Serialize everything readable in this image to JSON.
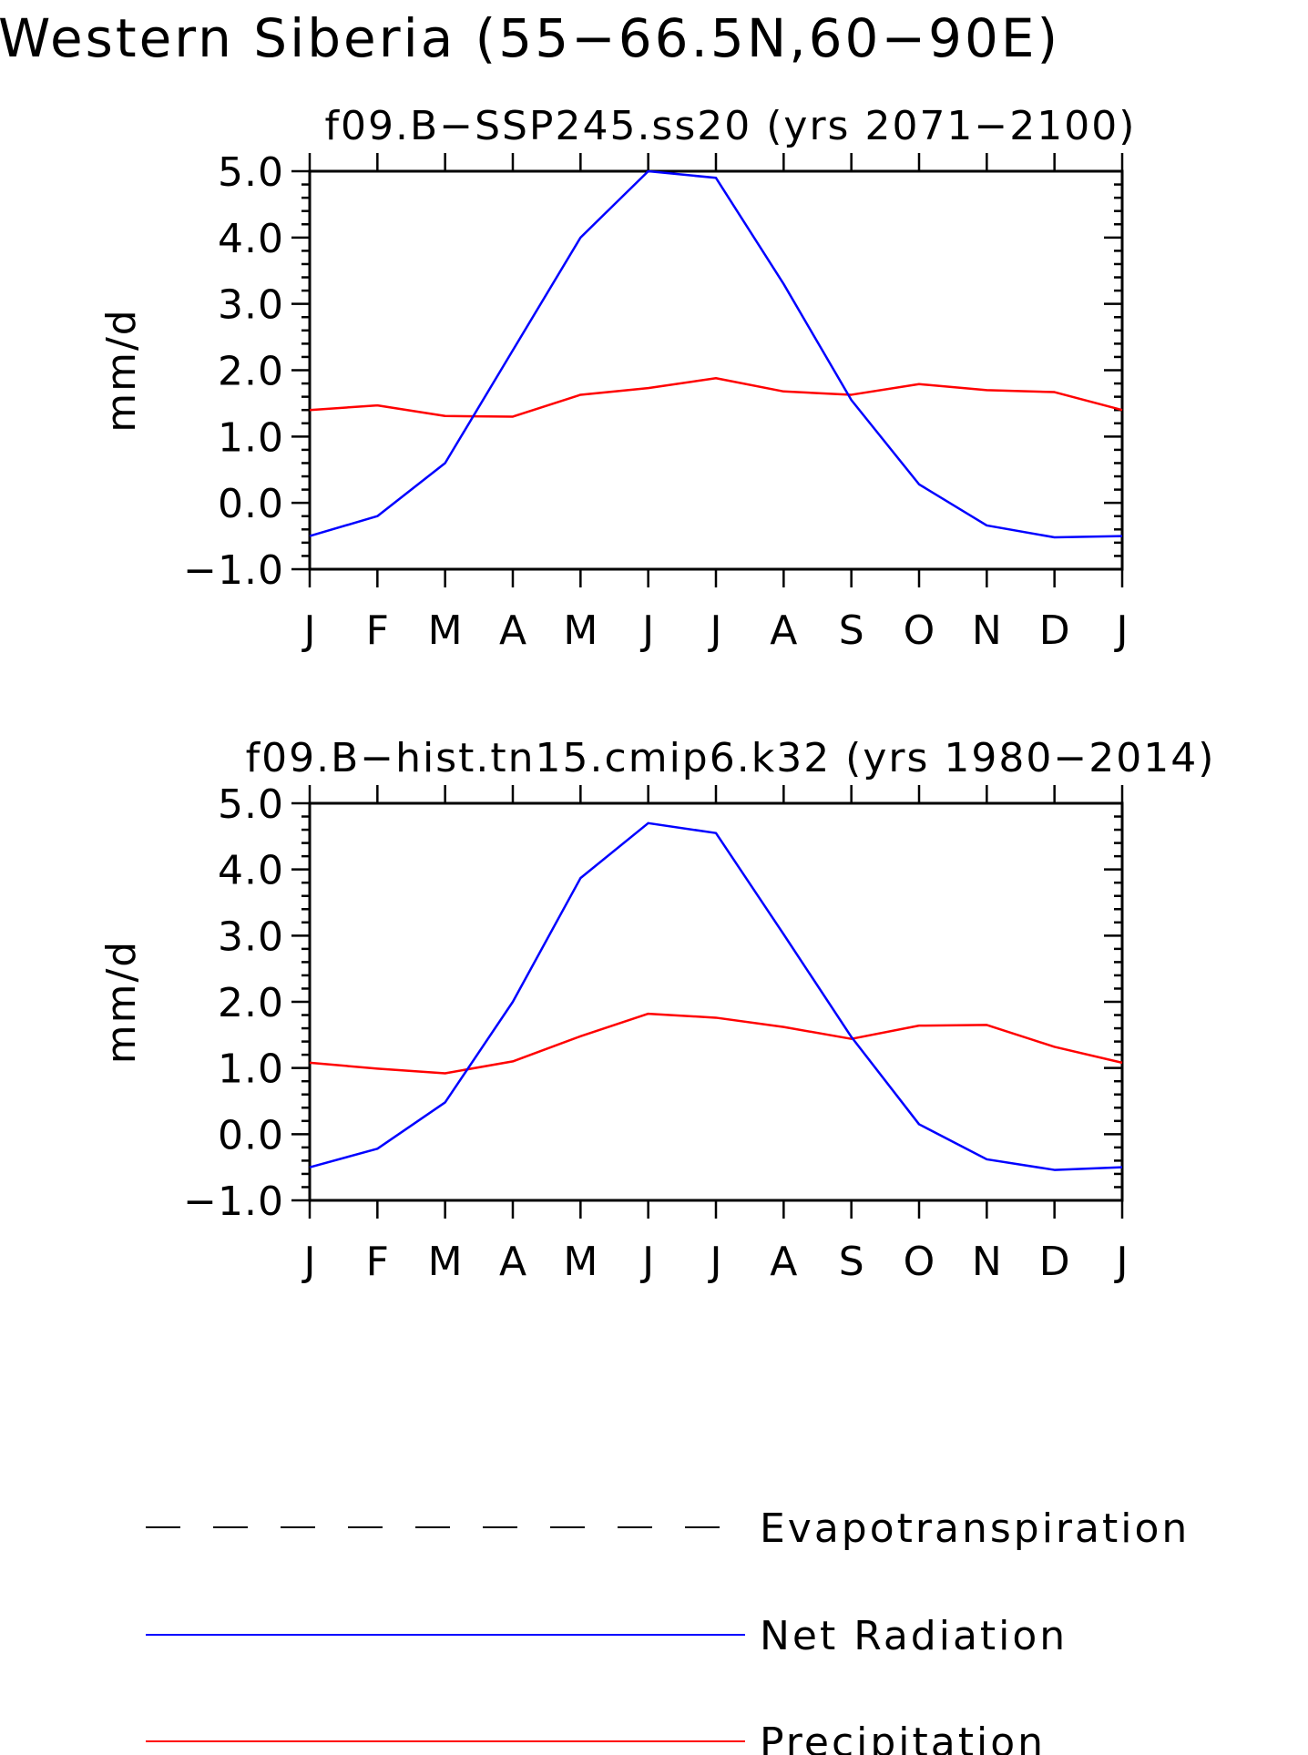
{
  "main_title": "Western Siberia (55-66.5N,60-90E)",
  "colors": {
    "net_radiation": "#0000ff",
    "precipitation": "#ff0000",
    "evapotranspiration": "#000000",
    "axis": "#000000"
  },
  "legend": {
    "placement": "bottom",
    "items": [
      {
        "label": "Evapotranspiration",
        "style": "dashed",
        "color": "#000000"
      },
      {
        "label": "Net Radiation",
        "style": "solid",
        "color": "#0000ff"
      },
      {
        "label": "Precipitation",
        "style": "solid",
        "color": "#ff0000"
      }
    ]
  },
  "chart_data": [
    {
      "type": "line",
      "title": "f09.B-SSP245.ss20 (yrs 2071-2100)",
      "ylabel": "mm/d",
      "xlabel": "",
      "categories": [
        "J",
        "F",
        "M",
        "A",
        "M",
        "J",
        "J",
        "A",
        "S",
        "O",
        "N",
        "D",
        "J"
      ],
      "ylim": [
        -1.0,
        5.0
      ],
      "yticks": [
        "5.0",
        "4.0",
        "3.0",
        "2.0",
        "1.0",
        "0.0",
        "-1.0"
      ],
      "series": [
        {
          "name": "Net Radiation",
          "values": [
            -0.5,
            -0.2,
            0.6,
            2.3,
            4.0,
            5.0,
            4.9,
            3.3,
            1.55,
            0.28,
            -0.34,
            -0.52,
            -0.5
          ]
        },
        {
          "name": "Precipitation",
          "values": [
            1.4,
            1.47,
            1.31,
            1.3,
            1.63,
            1.73,
            1.88,
            1.68,
            1.63,
            1.79,
            1.7,
            1.67,
            1.4
          ]
        }
      ]
    },
    {
      "type": "line",
      "title": "f09.B-hist.tn15.cmip6.k32 (yrs 1980-2014)",
      "ylabel": "mm/d",
      "xlabel": "",
      "categories": [
        "J",
        "F",
        "M",
        "A",
        "M",
        "J",
        "J",
        "A",
        "S",
        "O",
        "N",
        "D",
        "J"
      ],
      "ylim": [
        -1.0,
        5.0
      ],
      "yticks": [
        "5.0",
        "4.0",
        "3.0",
        "2.0",
        "1.0",
        "0.0",
        "-1.0"
      ],
      "series": [
        {
          "name": "Net Radiation",
          "values": [
            -0.5,
            -0.22,
            0.48,
            2.0,
            3.87,
            4.7,
            4.55,
            3.02,
            1.47,
            0.15,
            -0.38,
            -0.54,
            -0.5
          ]
        },
        {
          "name": "Precipitation",
          "values": [
            1.08,
            0.99,
            0.92,
            1.1,
            1.48,
            1.82,
            1.76,
            1.62,
            1.44,
            1.64,
            1.65,
            1.32,
            1.08
          ]
        }
      ]
    }
  ]
}
